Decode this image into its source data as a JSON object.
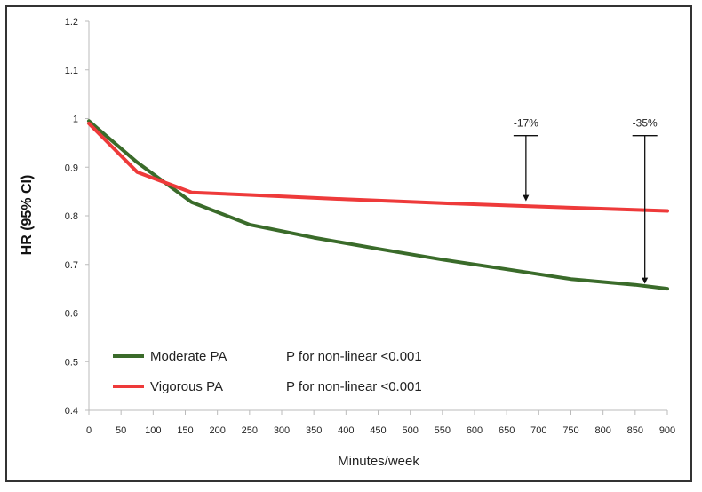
{
  "chart_data": {
    "type": "line",
    "title": "",
    "xlabel": "Minutes/week",
    "ylabel": "HR (95% CI)",
    "xlim": [
      0,
      900
    ],
    "ylim": [
      0.4,
      1.2
    ],
    "xticks": [
      0,
      50,
      100,
      150,
      200,
      250,
      300,
      350,
      400,
      450,
      500,
      550,
      600,
      650,
      700,
      750,
      800,
      850,
      900
    ],
    "yticks": [
      0.4,
      0.5,
      0.6,
      0.7,
      0.8,
      0.9,
      1,
      1.1,
      1.2
    ],
    "ytick_labels": [
      "0.4",
      "0.5",
      "0.6",
      "0.7",
      "0.8",
      "0.9",
      "1",
      "1.1",
      "1.2"
    ],
    "series": [
      {
        "name": "Moderate PA",
        "pvalue": "P for non-linear <0.001",
        "color": "#3a6b2a",
        "x": [
          0,
          75,
          160,
          250,
          350,
          450,
          550,
          650,
          750,
          850,
          900
        ],
        "y": [
          0.995,
          0.91,
          0.828,
          0.782,
          0.755,
          0.732,
          0.71,
          0.69,
          0.67,
          0.658,
          0.65
        ]
      },
      {
        "name": "Vigorous PA",
        "pvalue": "P for non-linear <0.001",
        "color": "#ee3a3a",
        "x": [
          0,
          75,
          160,
          250,
          400,
          550,
          700,
          900
        ],
        "y": [
          0.99,
          0.89,
          0.848,
          0.843,
          0.834,
          0.826,
          0.819,
          0.81
        ]
      }
    ],
    "annotations": [
      {
        "text": "-17%",
        "x": 680,
        "y_top": 0.965,
        "y_bottom": 0.83
      },
      {
        "text": "-35%",
        "x": 865,
        "y_top": 0.965,
        "y_bottom": 0.66
      }
    ],
    "legend_position": "bottom-left"
  }
}
